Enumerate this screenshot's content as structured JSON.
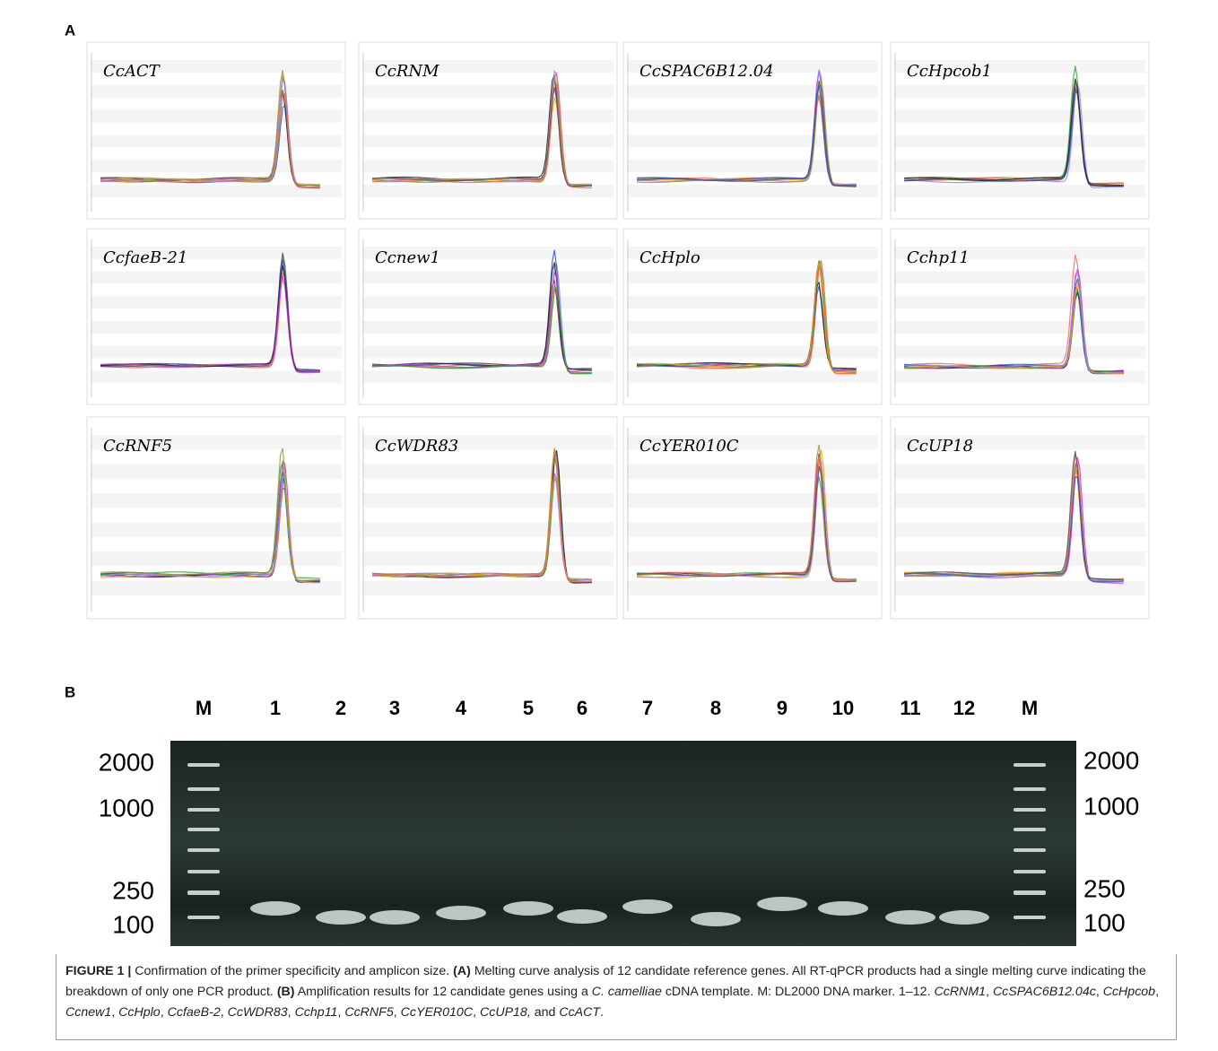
{
  "panel_a": {
    "label": "A",
    "genes": [
      "CcACT",
      "CcRNM",
      "CcSPAC6B12.04",
      "CcHpcob1",
      "CcfaeB-21",
      "Ccnew1",
      "CcHplo",
      "Cchp11",
      "CcRNF5",
      "CcWDR83",
      "CcYER010C",
      "CcUP18"
    ]
  },
  "panel_b": {
    "label": "B",
    "lanes": [
      "M",
      "1",
      "2",
      "3",
      "4",
      "5",
      "6",
      "7",
      "8",
      "9",
      "10",
      "11",
      "12",
      "M"
    ],
    "sizes_left": [
      "2000",
      "1000",
      "250",
      "100"
    ],
    "sizes_right": [
      "2000",
      "1000",
      "250",
      "100"
    ]
  },
  "caption": {
    "label": "FIGURE 1 |",
    "intro": "Confirmation of the primer specificity and amplicon size.",
    "a_label": "(A)",
    "a_text": "Melting curve analysis of 12 candidate reference genes. All RT-qPCR products had a single melting curve indicating the breakdown of only one PCR product.",
    "b_label": "(B)",
    "b_text": "Amplification results for 12 candidate genes using a",
    "species": "C. camelliae",
    "b_text2": "cDNA template. M: DL2000 DNA marker. 1–12.",
    "genes": [
      "CcRNM1",
      "CcSPAC6B12.04c",
      "CcHpcob",
      "Ccnew1",
      "CcHplo",
      "CcfaeB-2",
      "CcWDR83",
      "Cchp11",
      "CcRNF5",
      "CcYER010C",
      "CcUP18,",
      "CcACT"
    ],
    "sep": ",",
    "and": "and",
    "end": "."
  }
}
